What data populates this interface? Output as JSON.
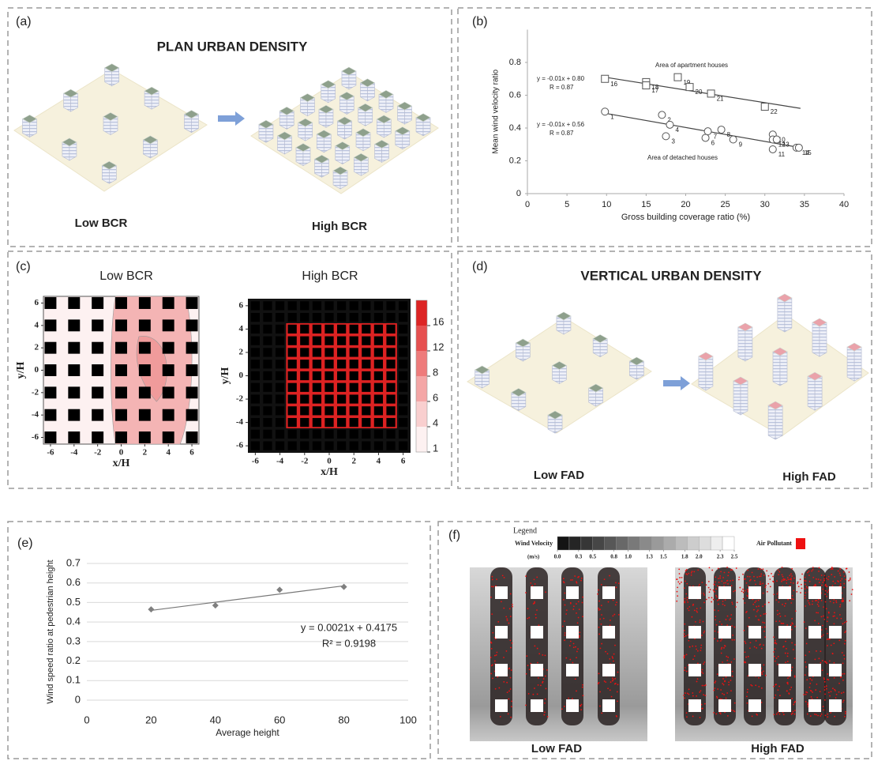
{
  "panels": {
    "a": {
      "label": "(a)",
      "title": "PLAN URBAN DENSITY",
      "left_caption": "Low BCR",
      "right_caption": "High BCR"
    },
    "b": {
      "label": "(b)",
      "chart_data": {
        "type": "scatter",
        "xlabel": "Gross building coverage ratio (%)",
        "ylabel": "Mean wind velocity ratio",
        "xlim": [
          0,
          40
        ],
        "xticks": [
          0,
          5,
          10,
          15,
          20,
          25,
          30,
          35,
          40
        ],
        "ylim": [
          0,
          1
        ],
        "yticks": [
          0,
          0.2,
          0.4,
          0.6,
          0.8
        ],
        "series": [
          {
            "name": "Area of apartment houses",
            "marker": "square",
            "color": "#555555",
            "x": [
              9.8,
              15,
              15,
              19,
              20.5,
              23.2,
              30
            ],
            "values": [
              0.7,
              0.68,
              0.66,
              0.71,
              0.65,
              0.61,
              0.53
            ],
            "labels": [
              "16",
              "18",
              "17",
              "19",
              "20",
              "21",
              "22"
            ]
          },
          {
            "name": "Area of detached houses",
            "marker": "circle",
            "color": "#555555",
            "x": [
              9.8,
              17,
              18,
              17.5,
              22.8,
              24.5,
              22.5,
              26,
              31,
              31,
              31.5,
              31,
              34,
              34.3
            ],
            "values": [
              0.5,
              0.48,
              0.42,
              0.35,
              0.38,
              0.39,
              0.34,
              0.33,
              0.36,
              0.33,
              0.33,
              0.27,
              0.28,
              0.28
            ],
            "labels": [
              "1",
              "2",
              "4",
              "3",
              "7",
              "8",
              "6",
              "9",
              "10",
              "12",
              "13",
              "11",
              "14",
              "15"
            ]
          }
        ],
        "trendlines": [
          {
            "x": [
              9.8,
              34.5
            ],
            "values": [
              0.71,
              0.52
            ]
          },
          {
            "x": [
              9.8,
              34.5
            ],
            "values": [
              0.49,
              0.28
            ]
          }
        ],
        "annotations": [
          "y = -0.01x + 0.80",
          "R = 0.87",
          "y = -0.01x + 0.56",
          "R = 0.87"
        ]
      }
    },
    "c": {
      "label": "(c)",
      "left_title": "Low BCR",
      "right_title": "High BCR",
      "xlabel": "x/H",
      "ylabel": "y/H",
      "lim": [
        -6.6,
        6.6
      ],
      "ticks": [
        -6,
        -4,
        -2,
        0,
        2,
        4,
        6
      ],
      "colorbar_ticks": [
        1,
        4,
        6,
        8,
        12,
        16
      ],
      "colorbar_colors": [
        "#fdf1f1",
        "#f9cfcf",
        "#f4a6a6",
        "#ee7b7b",
        "#e65050",
        "#dd2424"
      ]
    },
    "d": {
      "label": "(d)",
      "title": "VERTICAL URBAN DENSITY",
      "left_caption": "Low FAD",
      "right_caption": "High FAD"
    },
    "e": {
      "label": "(e)",
      "chart_data": {
        "type": "scatter",
        "xlabel": "Average height",
        "ylabel": "Wind speed ratio at pedestrian height",
        "xlim": [
          0,
          100
        ],
        "xticks": [
          0,
          20,
          40,
          60,
          80,
          100
        ],
        "ylim": [
          0,
          0.7
        ],
        "yticks": [
          0,
          0.1,
          0.2,
          0.3,
          0.4,
          0.5,
          0.6,
          0.7
        ],
        "grid": true,
        "series": [
          {
            "marker": "diamond",
            "color": "#7f7f7f",
            "x": [
              20,
              40,
              60,
              80
            ],
            "values": [
              0.465,
              0.485,
              0.565,
              0.58
            ]
          }
        ],
        "trendlines": [
          {
            "x": [
              20,
              80
            ],
            "values": [
              0.4595,
              0.5855
            ]
          }
        ],
        "annotations": [
          "y = 0.0021x + 0.4175",
          "R² = 0.9198"
        ]
      }
    },
    "f": {
      "label": "(f)",
      "legend_title": "Legend",
      "velocity_title": "Wind Velocity",
      "units": "(m/s)",
      "velocity_ticks": [
        {
          "value": 0,
          "label": "0.0"
        },
        0.3,
        0.5,
        0.8,
        {
          "value": 1,
          "label": "1.0"
        },
        1.3,
        1.5,
        1.8,
        {
          "value": 2,
          "label": "2.0"
        },
        2.3,
        2.5
      ],
      "pollutant": "Air Pollutant",
      "pollutant_color": "#ee1111",
      "left_caption": "Low FAD",
      "right_caption": "High FAD"
    }
  }
}
